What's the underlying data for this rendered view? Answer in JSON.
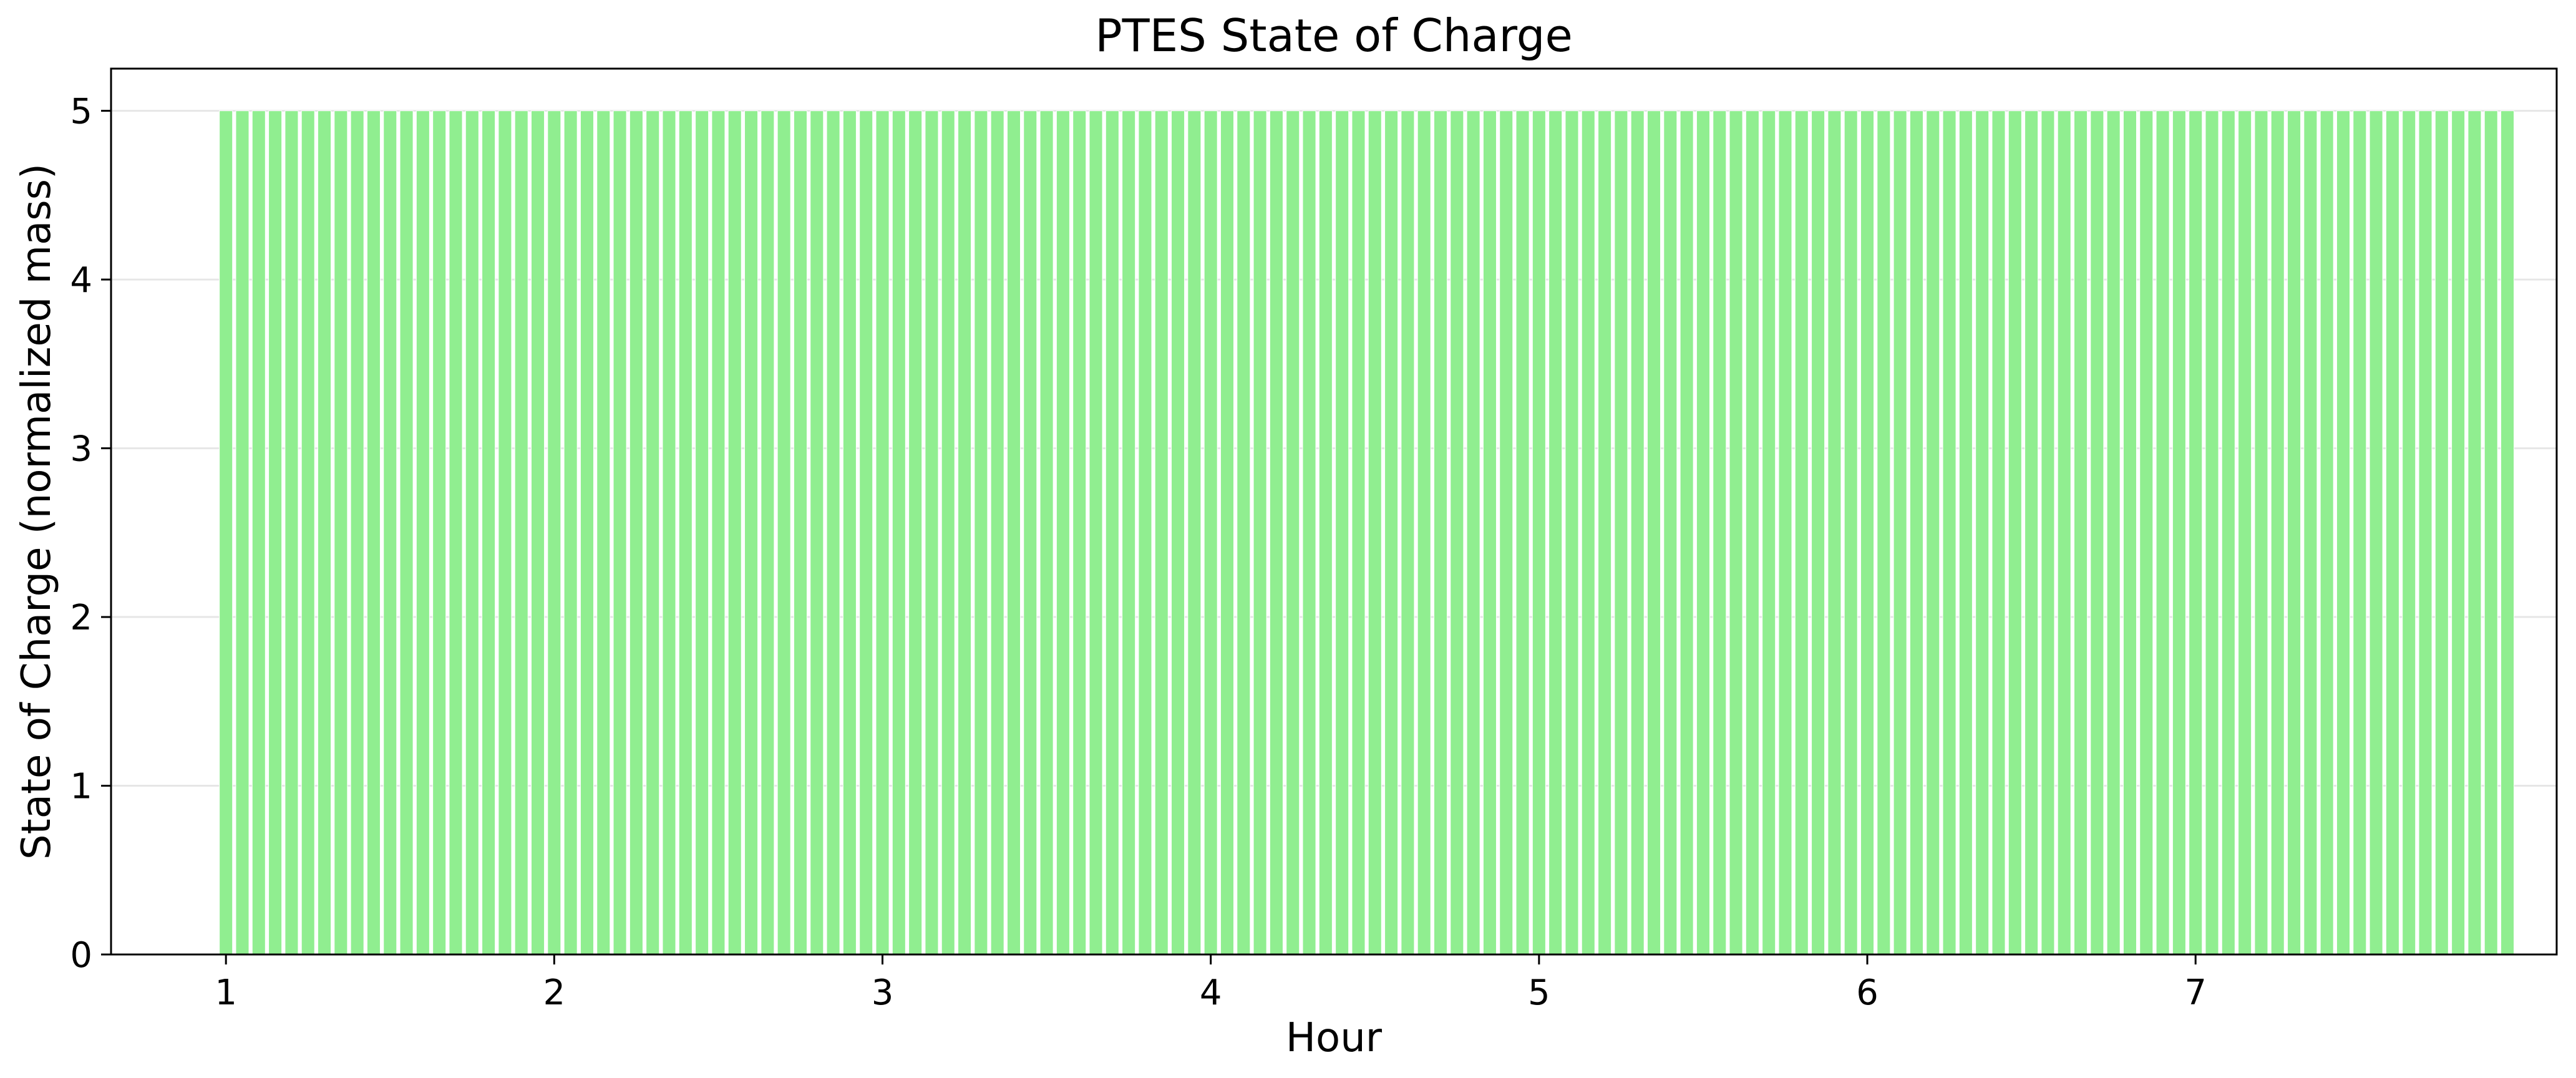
{
  "chart_data": {
    "type": "bar",
    "title": "PTES State of Charge",
    "xlabel": "Hour",
    "ylabel": "State of Charge (normalized mass)",
    "x_start": 1,
    "x_end": 7.95,
    "bar_count": 140,
    "value": 5,
    "values_note": "all bars at 5",
    "xlim": [
      0.65,
      8.1
    ],
    "ylim": [
      0,
      5.25
    ],
    "xticks": [
      1,
      2,
      3,
      4,
      5,
      6,
      7
    ],
    "yticks": [
      0,
      1,
      2,
      3,
      4,
      5
    ],
    "grid": "horizontal",
    "bar_color": "#90ee90",
    "bar_edge_color": "#ffffff",
    "legend": "none"
  }
}
